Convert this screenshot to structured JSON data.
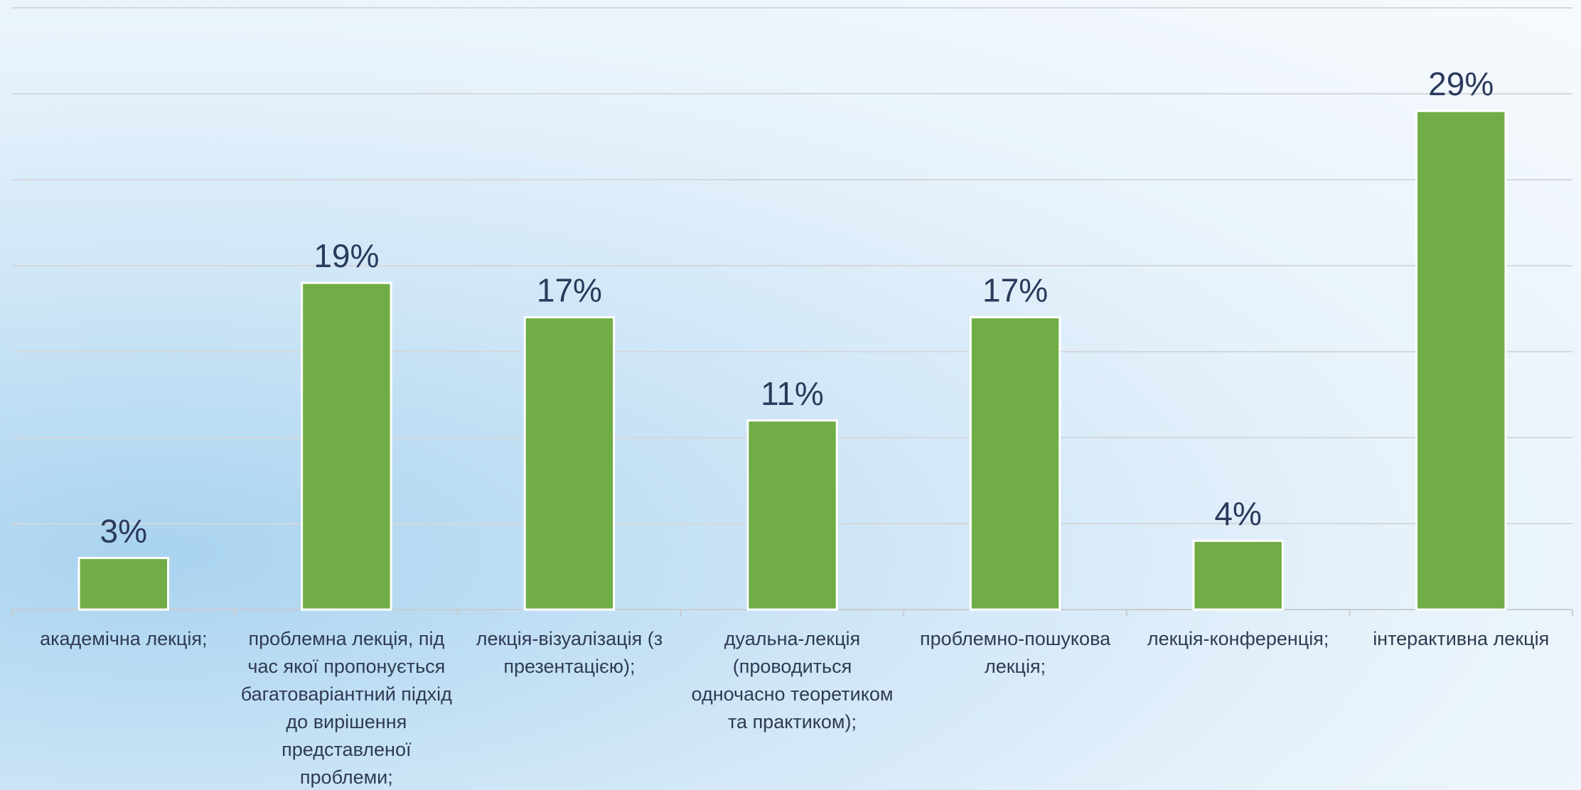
{
  "chart_data": {
    "type": "bar",
    "categories": [
      "академічна лекція;",
      "проблемна лекція, під час якої пропонується багатоваріантний підхід до вирішення представленої проблеми;",
      "лекція-візуалізація (з презентацією);",
      "дуальна-лекція (проводиться одночасно теоретиком та практиком);",
      "проблемно-пошукова лекція;",
      "лекція-конференція;",
      "інтерактивна лекція"
    ],
    "values": [
      3,
      19,
      17,
      11,
      17,
      4,
      29
    ],
    "value_labels": [
      "3%",
      "19%",
      "17%",
      "11%",
      "17%",
      "4%",
      "29%"
    ],
    "color": "#70ad47",
    "ylim": [
      0,
      35
    ],
    "yticks": [
      0,
      5,
      10,
      15,
      20,
      25,
      30,
      35
    ],
    "grid": true
  }
}
